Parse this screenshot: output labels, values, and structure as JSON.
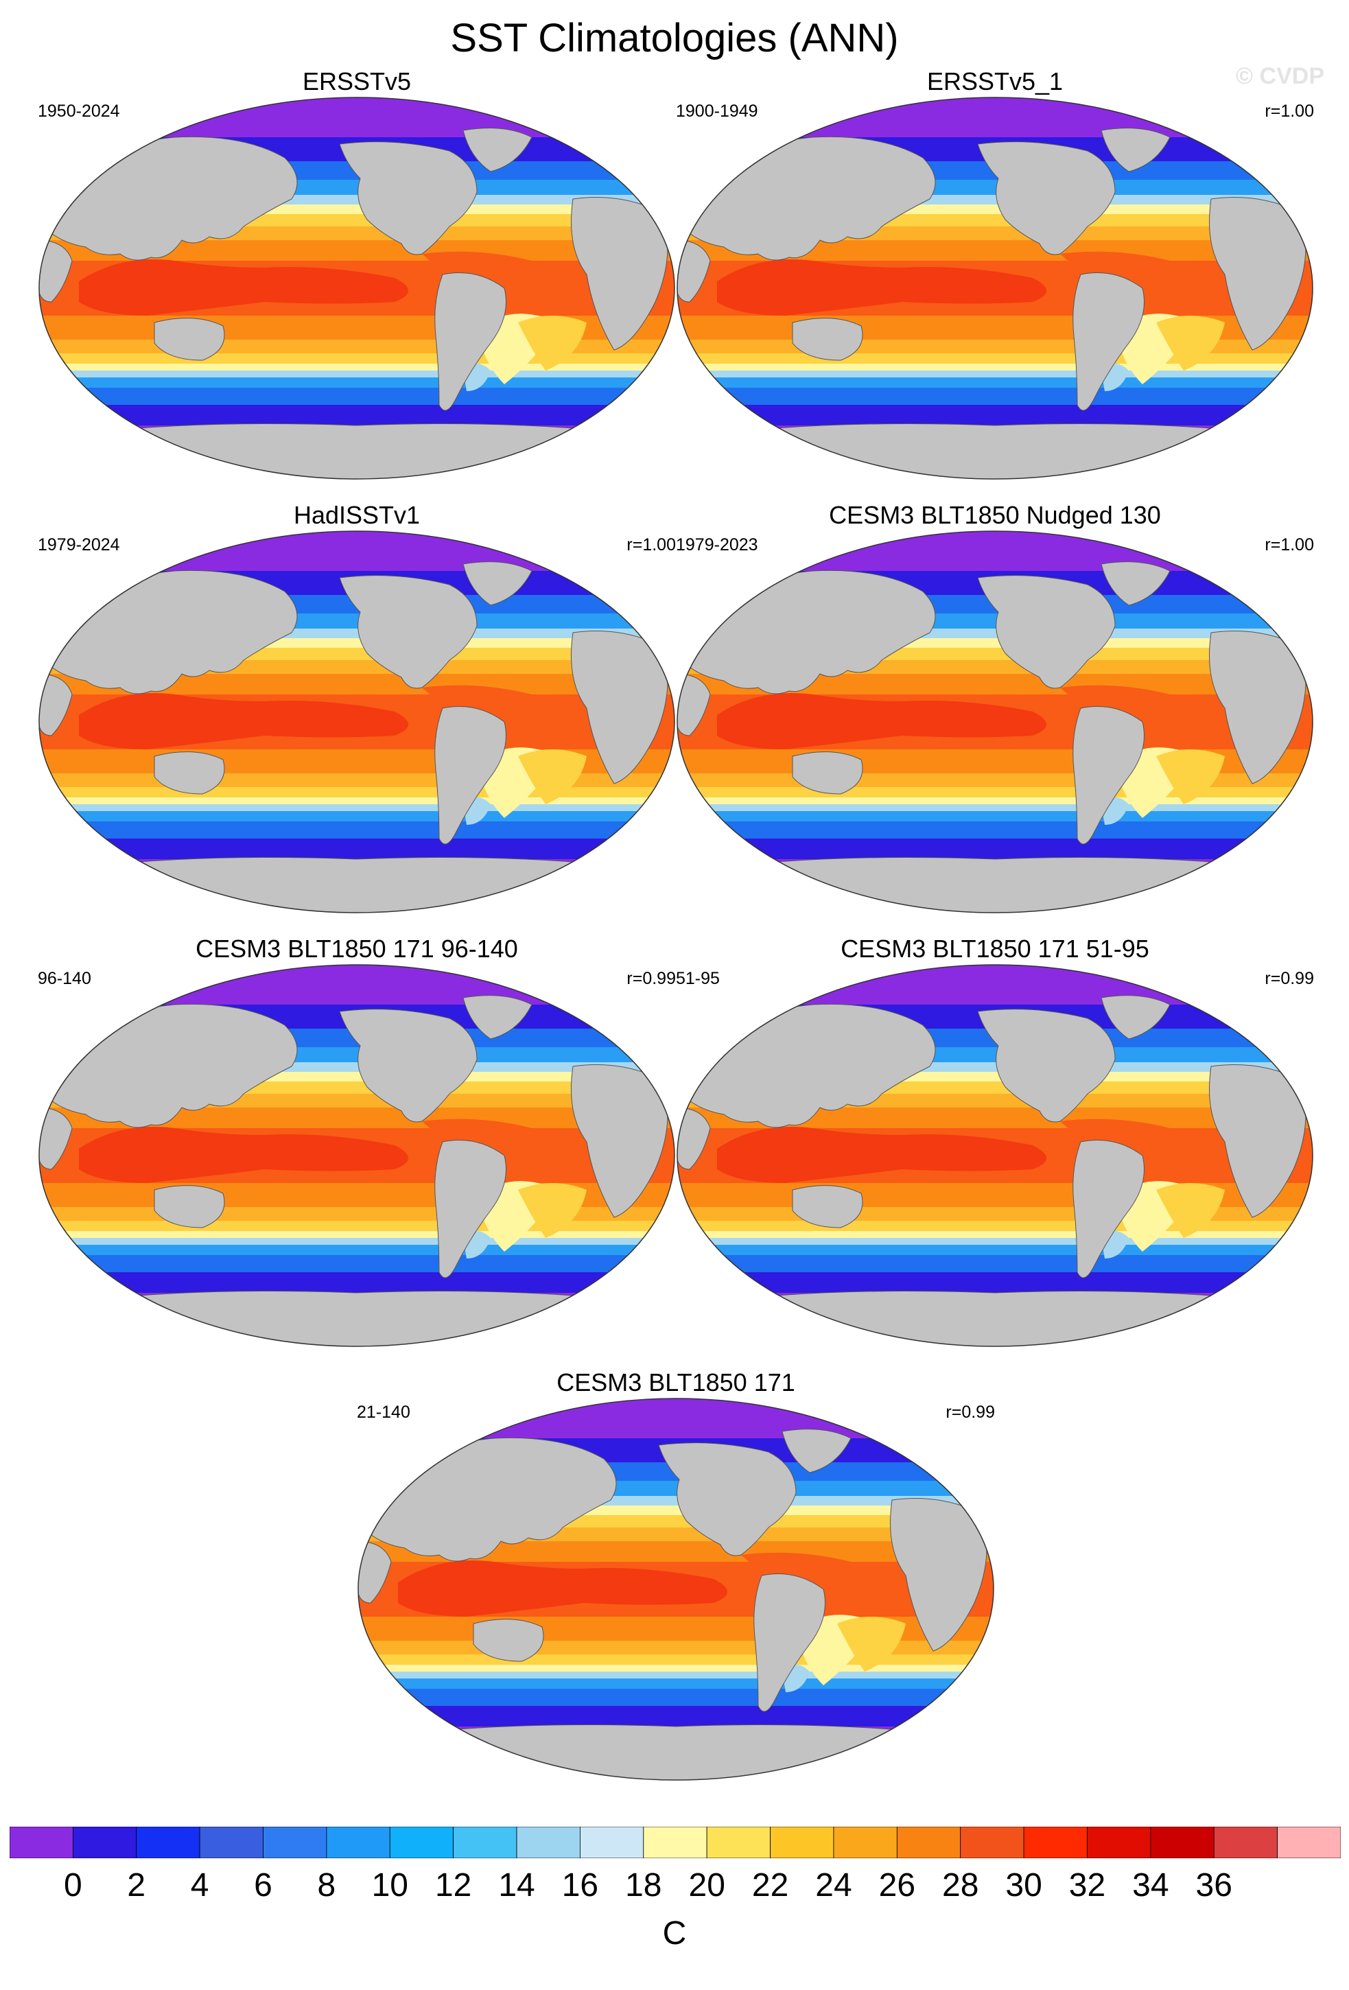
{
  "title": "SST Climatologies (ANN)",
  "watermark": "© CVDP",
  "panels": [
    {
      "title": "ERSSTv5",
      "period": "1950-2024",
      "r": ""
    },
    {
      "title": "ERSSTv5_1",
      "period": "1900-1949",
      "r": "r=1.00"
    },
    {
      "title": "HadISSTv1",
      "period": "1979-2024",
      "r": "r=1.00"
    },
    {
      "title": "CESM3 BLT1850 Nudged 130",
      "period": "1979-2023",
      "r": "r=1.00"
    },
    {
      "title": "CESM3 BLT1850 171 96-140",
      "period": "96-140",
      "r": "r=0.99"
    },
    {
      "title": "CESM3 BLT1850 171 51-95",
      "period": "51-95",
      "r": "r=0.99"
    },
    {
      "title": "CESM3 BLT1850 171",
      "period": "21-140",
      "r": "r=0.99"
    }
  ],
  "colorbar": {
    "colors": [
      "#8a2be2",
      "#2e1ae0",
      "#1530f5",
      "#3a5ee0",
      "#2f7cf2",
      "#1f9af7",
      "#10b0fa",
      "#45c2f5",
      "#9dd4f0",
      "#cde7f6",
      "#fff9a8",
      "#fde258",
      "#fec527",
      "#fba71b",
      "#f98312",
      "#f2531a",
      "#ff2a00",
      "#e00d00",
      "#cc0000",
      "#dd4040",
      "#ffb1b3"
    ],
    "ticks": [
      "0",
      "2",
      "4",
      "6",
      "8",
      "10",
      "12",
      "14",
      "16",
      "18",
      "20",
      "22",
      "24",
      "26",
      "28",
      "30",
      "32",
      "34",
      "36"
    ],
    "units": "C"
  },
  "map_colors": {
    "land": "#c3c3c3",
    "polar": "#8a2be2",
    "cold": "#2e1ae0",
    "blue": "#1f6ff0",
    "sky": "#2a9ef5",
    "pale": "#a8d8f0",
    "yellow": "#fff6a0",
    "gold": "#fdd243",
    "orange1": "#fdb128",
    "orange2": "#fb8a15",
    "warm": "#f85c16",
    "hot": "#f43a10"
  }
}
